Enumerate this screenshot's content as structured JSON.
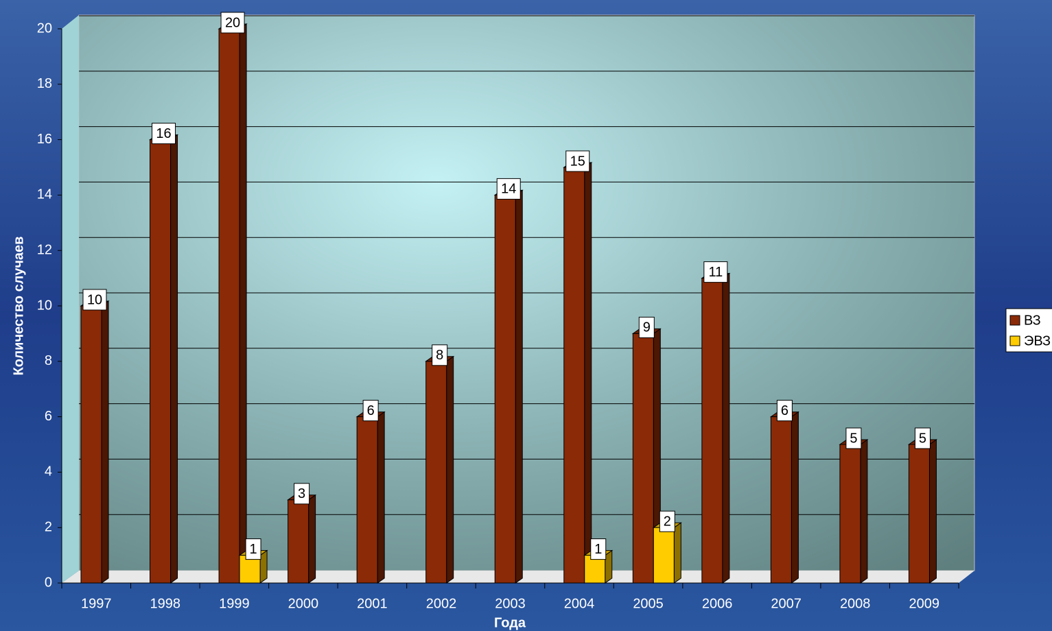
{
  "chart_data": {
    "type": "bar",
    "y_label": "Количество случаев",
    "x_label": "Года",
    "categories": [
      "1997",
      "1998",
      "1999",
      "2000",
      "2001",
      "2002",
      "2003",
      "2004",
      "2005",
      "2006",
      "2007",
      "2008",
      "2009"
    ],
    "series": [
      {
        "name": "ВЗ",
        "color": "#8b2a06",
        "values": [
          10,
          16,
          20,
          3,
          6,
          8,
          14,
          15,
          9,
          11,
          6,
          5,
          5
        ]
      },
      {
        "name": "ЭВЗ",
        "color": "#ffcc00",
        "values": [
          null,
          null,
          1,
          null,
          null,
          null,
          null,
          1,
          2,
          null,
          null,
          null,
          null
        ]
      }
    ],
    "ylim": [
      0,
      20
    ],
    "yticks": [
      0,
      2,
      4,
      6,
      8,
      10,
      12,
      14,
      16,
      18,
      20
    ],
    "grid": true,
    "legend": "right"
  }
}
